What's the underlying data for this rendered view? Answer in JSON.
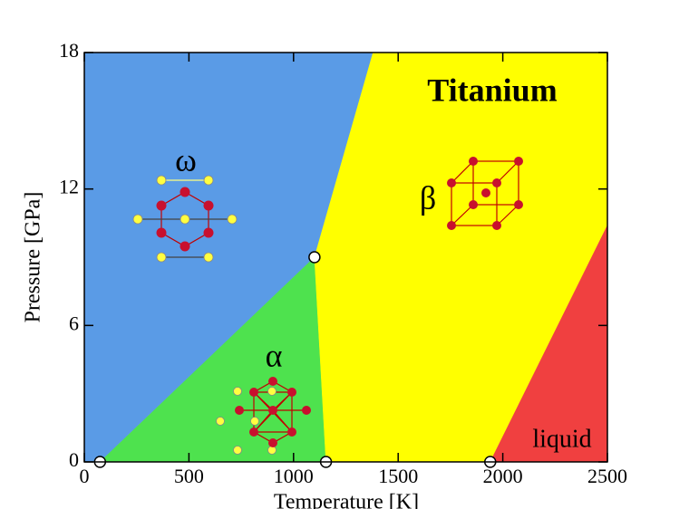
{
  "chart_data": {
    "type": "phase-diagram",
    "title": "Titanium",
    "x_label": "Temperature [K]",
    "y_label": "Pressure [GPa]",
    "xlim": [
      0,
      2500
    ],
    "ylim": [
      0,
      18
    ],
    "xticks": [
      0,
      500,
      1000,
      1500,
      2000,
      2500
    ],
    "yticks": [
      0,
      6,
      12,
      18
    ],
    "regions": [
      {
        "name": "ω",
        "color": "#5a9be6",
        "x": [
          0,
          75,
          1100,
          1380,
          0
        ],
        "y": [
          0,
          0,
          9,
          18,
          18
        ]
      },
      {
        "name": "α",
        "color": "#4ee24e",
        "x": [
          75,
          1155,
          1100
        ],
        "y": [
          0,
          0,
          9
        ]
      },
      {
        "name": "β",
        "color": "#ffff00",
        "x": [
          1155,
          1940,
          2500,
          2500,
          1380,
          1100
        ],
        "y": [
          0,
          0,
          10.4,
          18,
          18,
          9
        ]
      },
      {
        "name": "liquid",
        "color": "#f04040",
        "x": [
          1940,
          2500,
          2500
        ],
        "y": [
          0,
          0,
          10.4
        ]
      }
    ],
    "points": {
      "x": [
        75,
        1100,
        1155,
        1940
      ],
      "y": [
        0,
        9,
        0,
        0
      ]
    }
  }
}
